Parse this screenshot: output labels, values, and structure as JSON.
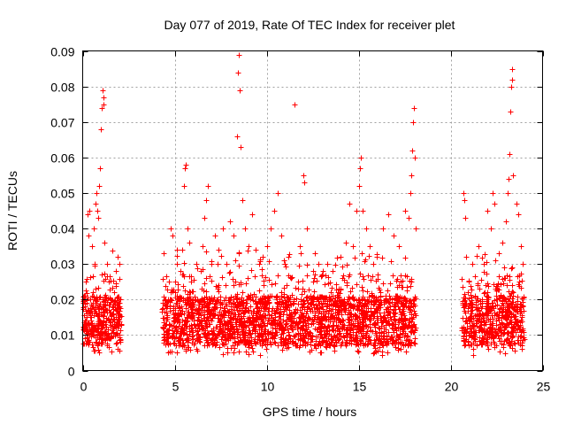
{
  "chart_data": {
    "type": "scatter",
    "title": "Day 077 of 2019, Rate Of TEC Index for receiver plet",
    "xlabel": "GPS time / hours",
    "ylabel": "ROTI / TECUs",
    "xlim": [
      0,
      25
    ],
    "ylim": [
      0,
      0.09
    ],
    "xticks": [
      0,
      5,
      10,
      15,
      20,
      25
    ],
    "xtick_labels": [
      "0",
      "5",
      "10",
      "15",
      "20",
      "25"
    ],
    "yticks": [
      0,
      0.01,
      0.02,
      0.03,
      0.04,
      0.05,
      0.06,
      0.07,
      0.08,
      0.09
    ],
    "ytick_labels": [
      "0",
      "0.01",
      "0.02",
      "0.03",
      "0.04",
      "0.05",
      "0.06",
      "0.07",
      "0.08",
      "0.09"
    ],
    "grid": true,
    "marker": "+",
    "color": "#ff0000",
    "series": [
      {
        "name": "ROTI",
        "points": [
          [
            0.05,
            0.012
          ],
          [
            0.1,
            0.018
          ],
          [
            0.15,
            0.025
          ],
          [
            0.2,
            0.009
          ],
          [
            0.25,
            0.044
          ],
          [
            0.3,
            0.038
          ],
          [
            0.35,
            0.045
          ],
          [
            0.4,
            0.02
          ],
          [
            0.45,
            0.015
          ],
          [
            0.5,
            0.035
          ],
          [
            0.55,
            0.022
          ],
          [
            0.6,
            0.04
          ],
          [
            0.65,
            0.03
          ],
          [
            0.7,
            0.047
          ],
          [
            0.75,
            0.05
          ],
          [
            0.8,
            0.045
          ],
          [
            0.85,
            0.043
          ],
          [
            0.9,
            0.052
          ],
          [
            0.95,
            0.057
          ],
          [
            1.0,
            0.068
          ],
          [
            1.05,
            0.074
          ],
          [
            1.1,
            0.079
          ],
          [
            1.12,
            0.077
          ],
          [
            1.15,
            0.075
          ],
          [
            1.2,
            0.036
          ],
          [
            1.3,
            0.03
          ],
          [
            1.4,
            0.025
          ],
          [
            1.5,
            0.02
          ],
          [
            1.6,
            0.018
          ],
          [
            1.7,
            0.022
          ],
          [
            1.8,
            0.028
          ],
          [
            1.9,
            0.032
          ],
          [
            2.0,
            0.03
          ],
          [
            0.3,
            0.008
          ],
          [
            0.6,
            0.01
          ],
          [
            0.9,
            0.013
          ],
          [
            1.2,
            0.011
          ],
          [
            1.5,
            0.009
          ],
          [
            1.8,
            0.012
          ],
          [
            2.0,
            0.015
          ],
          [
            4.4,
            0.033
          ],
          [
            4.5,
            0.02
          ],
          [
            4.6,
            0.015
          ],
          [
            4.7,
            0.025
          ],
          [
            4.8,
            0.04
          ],
          [
            4.9,
            0.038
          ],
          [
            5.0,
            0.022
          ],
          [
            5.1,
            0.03
          ],
          [
            5.2,
            0.018
          ],
          [
            5.3,
            0.028
          ],
          [
            5.4,
            0.034
          ],
          [
            5.5,
            0.052
          ],
          [
            5.55,
            0.057
          ],
          [
            5.6,
            0.058
          ],
          [
            5.7,
            0.04
          ],
          [
            5.8,
            0.036
          ],
          [
            5.9,
            0.025
          ],
          [
            6.0,
            0.02
          ],
          [
            6.2,
            0.03
          ],
          [
            6.4,
            0.028
          ],
          [
            6.5,
            0.035
          ],
          [
            6.6,
            0.043
          ],
          [
            6.7,
            0.048
          ],
          [
            6.8,
            0.052
          ],
          [
            7.0,
            0.03
          ],
          [
            7.2,
            0.038
          ],
          [
            7.4,
            0.034
          ],
          [
            7.6,
            0.04
          ],
          [
            7.8,
            0.03
          ],
          [
            8.0,
            0.042
          ],
          [
            8.2,
            0.038
          ],
          [
            8.4,
            0.066
          ],
          [
            8.45,
            0.084
          ],
          [
            8.5,
            0.089
          ],
          [
            8.55,
            0.079
          ],
          [
            8.6,
            0.063
          ],
          [
            8.7,
            0.048
          ],
          [
            8.8,
            0.04
          ],
          [
            9.0,
            0.035
          ],
          [
            9.2,
            0.044
          ],
          [
            9.4,
            0.034
          ],
          [
            9.6,
            0.03
          ],
          [
            9.8,
            0.032
          ],
          [
            10.0,
            0.035
          ],
          [
            10.2,
            0.04
          ],
          [
            10.4,
            0.045
          ],
          [
            10.6,
            0.05
          ],
          [
            10.8,
            0.038
          ],
          [
            11.0,
            0.03
          ],
          [
            11.2,
            0.032
          ],
          [
            11.5,
            0.075
          ],
          [
            11.8,
            0.035
          ],
          [
            12.0,
            0.055
          ],
          [
            12.05,
            0.053
          ],
          [
            12.2,
            0.04
          ],
          [
            12.5,
            0.028
          ],
          [
            12.8,
            0.03
          ],
          [
            13.0,
            0.027
          ],
          [
            13.3,
            0.03
          ],
          [
            13.6,
            0.028
          ],
          [
            14.0,
            0.032
          ],
          [
            14.3,
            0.036
          ],
          [
            14.5,
            0.047
          ],
          [
            14.7,
            0.035
          ],
          [
            14.9,
            0.045
          ],
          [
            15.0,
            0.052
          ],
          [
            15.05,
            0.057
          ],
          [
            15.1,
            0.06
          ],
          [
            15.2,
            0.045
          ],
          [
            15.4,
            0.04
          ],
          [
            15.6,
            0.035
          ],
          [
            15.8,
            0.03
          ],
          [
            16.0,
            0.032
          ],
          [
            16.3,
            0.04
          ],
          [
            16.6,
            0.044
          ],
          [
            16.9,
            0.038
          ],
          [
            17.2,
            0.035
          ],
          [
            17.5,
            0.045
          ],
          [
            17.7,
            0.043
          ],
          [
            17.8,
            0.05
          ],
          [
            17.85,
            0.055
          ],
          [
            17.9,
            0.062
          ],
          [
            17.95,
            0.07
          ],
          [
            18.0,
            0.074
          ],
          [
            18.05,
            0.06
          ],
          [
            18.1,
            0.04
          ],
          [
            20.7,
            0.05
          ],
          [
            20.75,
            0.048
          ],
          [
            20.8,
            0.043
          ],
          [
            20.85,
            0.032
          ],
          [
            21.0,
            0.025
          ],
          [
            21.2,
            0.03
          ],
          [
            21.5,
            0.035
          ],
          [
            21.8,
            0.03
          ],
          [
            22.0,
            0.045
          ],
          [
            22.2,
            0.04
          ],
          [
            22.3,
            0.05
          ],
          [
            22.4,
            0.047
          ],
          [
            22.6,
            0.033
          ],
          [
            22.8,
            0.036
          ],
          [
            23.0,
            0.042
          ],
          [
            23.1,
            0.05
          ],
          [
            23.15,
            0.054
          ],
          [
            23.2,
            0.061
          ],
          [
            23.25,
            0.073
          ],
          [
            23.3,
            0.08
          ],
          [
            23.32,
            0.082
          ],
          [
            23.35,
            0.085
          ],
          [
            23.4,
            0.055
          ],
          [
            23.6,
            0.047
          ],
          [
            23.7,
            0.044
          ],
          [
            23.8,
            0.035
          ],
          [
            23.9,
            0.03
          ]
        ]
      }
    ]
  }
}
